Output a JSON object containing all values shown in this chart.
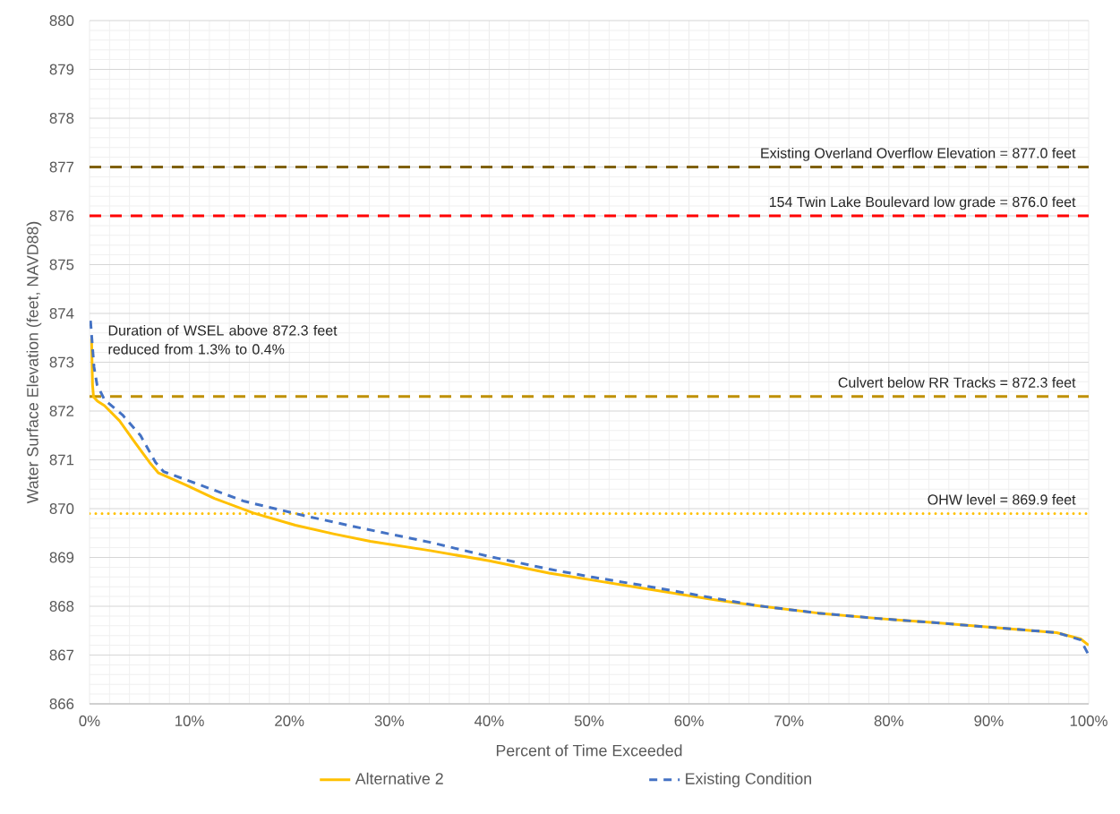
{
  "chart_data": {
    "type": "line",
    "xlabel": "Percent of Time Exceeded",
    "ylabel": "Water Surface Elevation (feet, NAVD88)",
    "xlim": [
      0,
      100
    ],
    "ylim": [
      866,
      880
    ],
    "xticks": [
      {
        "value": 0,
        "label": "0%"
      },
      {
        "value": 10,
        "label": "10%"
      },
      {
        "value": 20,
        "label": "20%"
      },
      {
        "value": 30,
        "label": "30%"
      },
      {
        "value": 40,
        "label": "40%"
      },
      {
        "value": 50,
        "label": "50%"
      },
      {
        "value": 60,
        "label": "60%"
      },
      {
        "value": 70,
        "label": "70%"
      },
      {
        "value": 80,
        "label": "80%"
      },
      {
        "value": 90,
        "label": "90%"
      },
      {
        "value": 100,
        "label": "100%"
      }
    ],
    "yticks": [
      866,
      867,
      868,
      869,
      870,
      871,
      872,
      873,
      874,
      875,
      876,
      877,
      878,
      879,
      880
    ],
    "grid": true,
    "legend": "bottom",
    "series": [
      {
        "name": "Alternative 2",
        "color": "#ffc000",
        "line_style": "solid",
        "x": [
          0.2,
          0.3,
          0.4,
          0.8,
          1.5,
          3.0,
          4.5,
          6.0,
          6.9,
          9.6,
          12.5,
          16.4,
          20.6,
          24.5,
          28.1,
          34.1,
          40.0,
          46.0,
          50.5,
          55.0,
          62.7,
          66.9,
          72.9,
          78.9,
          84.8,
          90.8,
          96.8,
          99.2,
          100
        ],
        "values": [
          873.48,
          872.54,
          872.29,
          872.2,
          872.11,
          871.8,
          871.37,
          870.95,
          870.73,
          870.49,
          870.21,
          869.91,
          869.66,
          869.48,
          869.33,
          869.14,
          868.93,
          868.68,
          868.53,
          868.38,
          868.13,
          868.01,
          867.86,
          867.75,
          867.66,
          867.56,
          867.46,
          867.33,
          867.2
        ]
      },
      {
        "name": "Existing Condition",
        "color": "#4472c4",
        "line_style": "dashed",
        "x": [
          0.1,
          0.45,
          0.75,
          1.5,
          3.3,
          5.1,
          6.6,
          7.4,
          11.0,
          15.5,
          21.2,
          27.2,
          34.1,
          40.0,
          46.0,
          50.5,
          55.0,
          62.7,
          66.9,
          72.9,
          78.9,
          84.8,
          90.8,
          96.8,
          99.2,
          100
        ],
        "values": [
          873.85,
          872.9,
          872.54,
          872.23,
          871.92,
          871.5,
          870.95,
          870.76,
          870.49,
          870.15,
          869.87,
          869.6,
          869.31,
          869.02,
          868.76,
          868.59,
          868.44,
          868.16,
          868.01,
          867.86,
          867.75,
          867.66,
          867.56,
          867.46,
          867.31,
          867.0
        ]
      }
    ],
    "ref_lines": [
      {
        "axis": "y",
        "value": 877.0,
        "label": "Existing Overland Overflow Elevation = 877.0 feet",
        "color": "#7f6000",
        "line_style": "dashed"
      },
      {
        "axis": "y",
        "value": 876.0,
        "label": "154 Twin Lake Boulevard low grade = 876.0 feet",
        "color": "#ff0000",
        "line_style": "dashed"
      },
      {
        "axis": "y",
        "value": 872.3,
        "label": "Culvert below RR Tracks = 872.3 feet",
        "color": "#bf9000",
        "line_style": "dashed"
      },
      {
        "axis": "y",
        "value": 869.9,
        "label": "OHW level = 869.9 feet",
        "color": "#ffc000",
        "line_style": "dotted"
      }
    ],
    "annotations": [
      "Duration of WSEL above 872.3 feet reduced from 1.3% to 0.4%"
    ]
  }
}
